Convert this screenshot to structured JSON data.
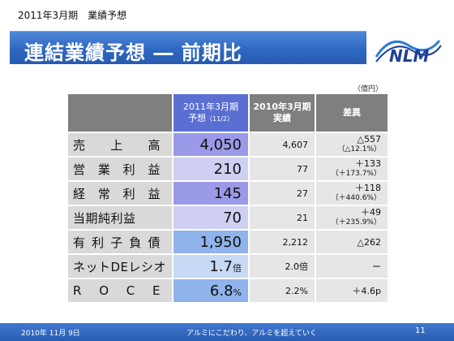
{
  "header": {
    "top_label": "2011年3月期　業績予想",
    "title": "連結業績予想 ― 前期比"
  },
  "unit_note": "（億円）",
  "table": {
    "col_forecast_line1": "2011年3月期",
    "col_forecast_line2": "予想",
    "col_forecast_sub": "（11/2）",
    "col_actual_line1": "2010年3月期",
    "col_actual_line2": "実績",
    "col_diff": "差異",
    "rows": [
      {
        "label_chars": [
          "売",
          "上",
          "高"
        ],
        "forecast": "4,050",
        "forecast_unit": "",
        "actual": "4,607",
        "diff": "△557",
        "diff_pct": "（△12.1%）",
        "fc_color": "#9a9ae8"
      },
      {
        "label_chars": [
          "営",
          "業",
          "利",
          "益"
        ],
        "forecast": "210",
        "forecast_unit": "",
        "actual": "77",
        "diff": "＋133",
        "diff_pct": "（＋173.7%）",
        "fc_color": "#cfcff2"
      },
      {
        "label_chars": [
          "経",
          "常",
          "利",
          "益"
        ],
        "forecast": "145",
        "forecast_unit": "",
        "actual": "27",
        "diff": "＋118",
        "diff_pct": "（＋440.6%）",
        "fc_color": "#9a9ae8"
      },
      {
        "label_chars": [
          "当期純利益"
        ],
        "forecast": "70",
        "forecast_unit": "",
        "actual": "21",
        "diff": "＋49",
        "diff_pct": "（＋235.9%）",
        "fc_color": "#cfcff2"
      },
      {
        "label_chars": [
          "有",
          "利",
          "子",
          "負",
          "債"
        ],
        "forecast": "1,950",
        "forecast_unit": "",
        "actual": "2,212",
        "diff": "△262",
        "diff_pct": "",
        "fc_color": "#8fb3ea"
      },
      {
        "label_chars": [
          "ネットDEレシオ"
        ],
        "forecast": "1.7",
        "forecast_unit": "倍",
        "actual": "2.0倍",
        "diff": "ー",
        "diff_pct": "",
        "fc_color": "#c6daf5"
      },
      {
        "label_chars": [
          "R",
          "O",
          "C",
          "E"
        ],
        "forecast": "6.8",
        "forecast_unit": "%",
        "actual": "2.2%",
        "diff": "＋4.6p",
        "diff_pct": "",
        "fc_color": "#8fb3ea"
      }
    ]
  },
  "footer": {
    "date": "2010年 11月 9日",
    "tagline": "アルミにこだわり、アルミを超えていく",
    "page": "11"
  },
  "logo": {
    "text": "NLM",
    "color": "#1f3f9a",
    "accent": "#2a7bd6"
  }
}
